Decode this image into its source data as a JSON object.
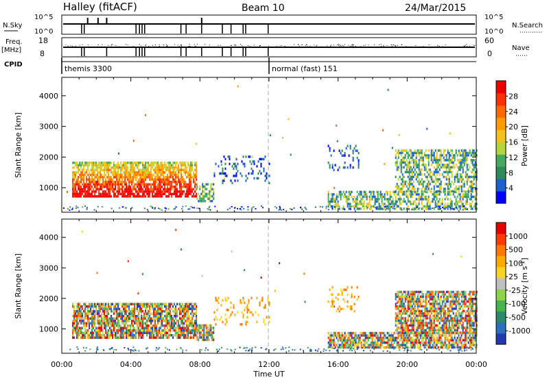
{
  "header": {
    "title": "Halley (fitACF)",
    "beam": "Beam 10",
    "date": "24/Mar/2015"
  },
  "summary": {
    "nsky_label": "N.Sky",
    "nsky_ticks": [
      "10^5",
      "10^0"
    ],
    "nsearch_label": "N.Search",
    "nsearch_ticks": [
      "10^5",
      "10^0"
    ],
    "freq_label": "Freq.",
    "freq_unit": "[MHz]",
    "freq_ticks": [
      "18",
      "8"
    ],
    "nave_label": "Nave",
    "nave_ticks": [
      "60",
      "0"
    ],
    "cpid_label": "CPID",
    "cpid_segments": [
      {
        "start_hour": 0,
        "label": "themis 3300"
      },
      {
        "start_hour": 12,
        "label": "normal (fast) 151"
      }
    ]
  },
  "chart_data": [
    {
      "type": "heatmap",
      "name": "power-panel",
      "xlabel": "",
      "ylabel": "Slant Range [km]",
      "x_range_hours": [
        0,
        24
      ],
      "y_range_km": [
        200,
        4600
      ],
      "y_ticks": [
        1000,
        2000,
        3000,
        4000
      ],
      "colorbar": {
        "label": "Power [dB]",
        "ticks": [
          "4",
          "8",
          "12",
          "16",
          "20",
          "24",
          "28"
        ],
        "colors": [
          "#0000ff",
          "#1f5fd0",
          "#2f8a5a",
          "#46a95f",
          "#b5d53c",
          "#f3c11a",
          "#ff9a00",
          "#ff6a00",
          "#ff3000",
          "#ee0000"
        ]
      },
      "regions": [
        {
          "h0": 0.6,
          "h1": 7.8,
          "r0": 700,
          "r1": 1850,
          "level": "high"
        },
        {
          "h0": 7.8,
          "h1": 8.8,
          "r0": 600,
          "r1": 1150,
          "level": "mid"
        },
        {
          "h0": 8.8,
          "h1": 12.0,
          "r0": 1150,
          "r1": 2050,
          "level": "sparse"
        },
        {
          "h0": 15.4,
          "h1": 17.2,
          "r0": 1550,
          "r1": 2400,
          "level": "sparse"
        },
        {
          "h0": 15.4,
          "h1": 24.0,
          "r0": 350,
          "r1": 900,
          "level": "mid"
        },
        {
          "h0": 19.3,
          "h1": 24.0,
          "r0": 900,
          "r1": 2250,
          "level": "mid"
        }
      ]
    },
    {
      "type": "heatmap",
      "name": "velocity-panel",
      "xlabel": "Time UT",
      "ylabel": "Slant Range [km]",
      "x_range_hours": [
        0,
        24
      ],
      "x_ticks": [
        "00:00",
        "04:00",
        "08:00",
        "12:00",
        "16:00",
        "20:00",
        "00:00"
      ],
      "y_range_km": [
        200,
        4600
      ],
      "y_ticks": [
        1000,
        2000,
        3000,
        4000
      ],
      "colorbar": {
        "label": "Velocity [m s^-1]",
        "ticks": [
          "1000",
          "500",
          "100",
          "25",
          "-25",
          "-100",
          "-500",
          "-1000"
        ],
        "colors": [
          "#2438b0",
          "#2c6fc0",
          "#2e8a6a",
          "#49b34e",
          "#8ed44a",
          "#c0c0c0",
          "#f6d520",
          "#ffaa00",
          "#ff7800",
          "#ff3c00",
          "#e60000"
        ]
      },
      "regions": [
        {
          "h0": 0.6,
          "h1": 7.8,
          "r0": 700,
          "r1": 1850,
          "level": "mixed"
        },
        {
          "h0": 7.8,
          "h1": 8.8,
          "r0": 600,
          "r1": 1150,
          "level": "mixed"
        },
        {
          "h0": 8.8,
          "h1": 12.0,
          "r0": 1150,
          "r1": 2050,
          "level": "sparse"
        },
        {
          "h0": 15.4,
          "h1": 17.2,
          "r0": 1550,
          "r1": 2400,
          "level": "sparse"
        },
        {
          "h0": 15.4,
          "h1": 24.0,
          "r0": 350,
          "r1": 900,
          "level": "mixed"
        },
        {
          "h0": 19.3,
          "h1": 24.0,
          "r0": 900,
          "r1": 2250,
          "level": "mixed"
        }
      ]
    }
  ]
}
